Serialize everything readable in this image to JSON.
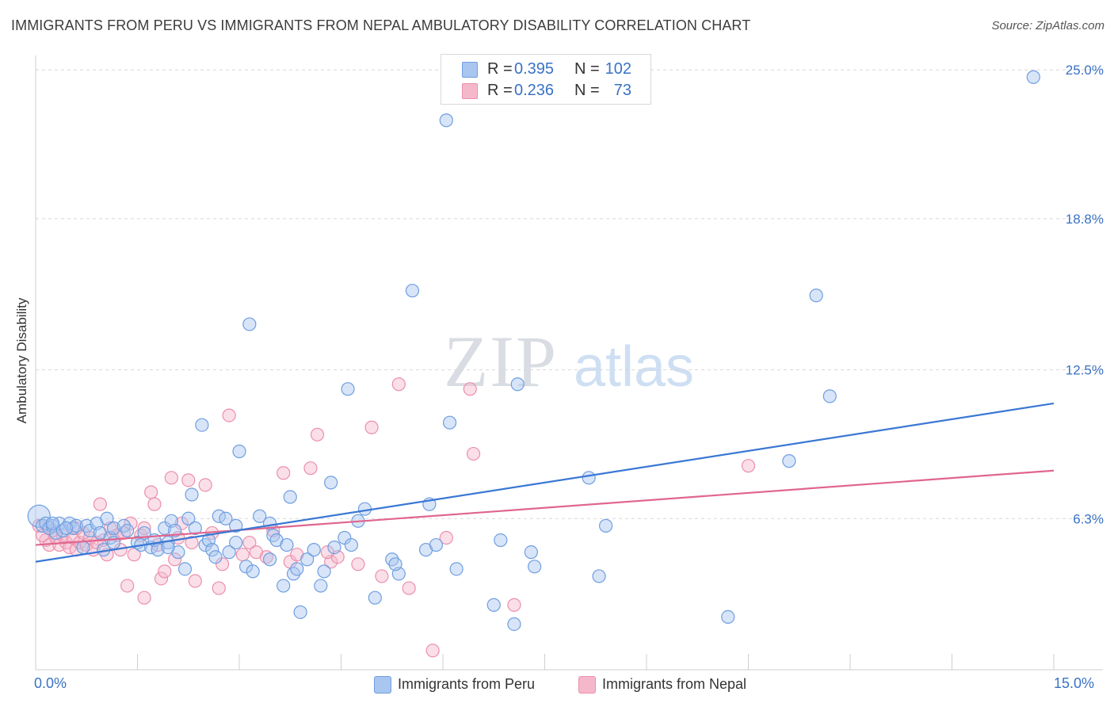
{
  "header": {
    "title": "IMMIGRANTS FROM PERU VS IMMIGRANTS FROM NEPAL AMBULATORY DISABILITY CORRELATION CHART",
    "source": "Source: ZipAtlas.com"
  },
  "watermark": {
    "zip": "ZIP",
    "atlas": "atlas"
  },
  "legend": {
    "rows": [
      {
        "r_label": "R =",
        "r_value": "0.395",
        "n_label": "N =",
        "n_value": "102",
        "color": "#a9c6f0"
      },
      {
        "r_label": "R =",
        "r_value": "0.236",
        "n_label": "N =",
        "n_value": "73",
        "color": "#f5b8cb"
      }
    ]
  },
  "bottom_legend": {
    "peru": "Immigrants from Peru",
    "nepal": "Immigrants from Nepal"
  },
  "colors": {
    "peru_fill": "#a9c6f0",
    "peru_stroke": "#6f9ee0",
    "peru_line": "#3a78d4",
    "nepal_fill": "#f5b8cb",
    "nepal_stroke": "#ec8fab",
    "nepal_line": "#e0668e",
    "axis_label": "#3a72c4",
    "grid": "#d8d8d8"
  },
  "chart_data": {
    "type": "scatter",
    "title": "IMMIGRANTS FROM PERU VS IMMIGRANTS FROM NEPAL AMBULATORY DISABILITY CORRELATION CHART",
    "xlabel": "",
    "ylabel": "Ambulatory Disability",
    "xlim": [
      0,
      15
    ],
    "ylim": [
      0,
      25.6
    ],
    "x_tick_labels": [
      "0.0%",
      "15.0%"
    ],
    "y_ticks": [
      6.3,
      12.5,
      18.8,
      25.0
    ],
    "y_tick_labels": [
      "6.3%",
      "12.5%",
      "18.8%",
      "25.0%"
    ],
    "grid": "horizontal dashed",
    "legend_position": "top-center",
    "series": [
      {
        "name": "Immigrants from Peru",
        "R": 0.395,
        "N": 102,
        "trend": {
          "x": [
            0,
            15
          ],
          "y": [
            4.5,
            11.1
          ]
        },
        "points": [
          [
            0.05,
            6.4
          ],
          [
            0.1,
            6.0
          ],
          [
            0.15,
            6.1
          ],
          [
            0.2,
            5.9
          ],
          [
            0.25,
            6.0
          ],
          [
            0.3,
            5.7
          ],
          [
            0.35,
            6.1
          ],
          [
            0.4,
            5.8
          ],
          [
            0.5,
            6.1
          ],
          [
            0.55,
            5.9
          ],
          [
            0.6,
            6.0
          ],
          [
            0.7,
            5.1
          ],
          [
            0.75,
            6.0
          ],
          [
            0.8,
            5.8
          ],
          [
            0.9,
            6.1
          ],
          [
            0.95,
            5.7
          ],
          [
            1.0,
            5.0
          ],
          [
            1.05,
            6.3
          ],
          [
            1.1,
            5.5
          ],
          [
            1.15,
            5.9
          ],
          [
            1.3,
            6.0
          ],
          [
            1.35,
            5.8
          ],
          [
            1.5,
            5.3
          ],
          [
            1.55,
            5.2
          ],
          [
            1.6,
            5.7
          ],
          [
            1.7,
            5.1
          ],
          [
            1.75,
            5.4
          ],
          [
            1.8,
            5.0
          ],
          [
            1.9,
            5.9
          ],
          [
            1.95,
            5.3
          ],
          [
            2.0,
            6.2
          ],
          [
            2.05,
            5.8
          ],
          [
            2.1,
            4.9
          ],
          [
            2.2,
            4.2
          ],
          [
            2.25,
            6.3
          ],
          [
            2.3,
            7.3
          ],
          [
            2.35,
            5.9
          ],
          [
            2.45,
            10.2
          ],
          [
            2.5,
            5.2
          ],
          [
            2.55,
            5.4
          ],
          [
            2.6,
            5.0
          ],
          [
            2.65,
            4.7
          ],
          [
            2.7,
            6.4
          ],
          [
            2.8,
            6.3
          ],
          [
            2.85,
            4.9
          ],
          [
            2.95,
            6.0
          ],
          [
            3.0,
            9.1
          ],
          [
            3.1,
            4.3
          ],
          [
            3.15,
            14.4
          ],
          [
            3.2,
            4.1
          ],
          [
            3.3,
            6.4
          ],
          [
            3.45,
            4.6
          ],
          [
            3.5,
            5.6
          ],
          [
            3.55,
            5.4
          ],
          [
            3.65,
            3.5
          ],
          [
            3.7,
            5.2
          ],
          [
            3.75,
            7.2
          ],
          [
            3.8,
            4.0
          ],
          [
            3.85,
            4.2
          ],
          [
            3.9,
            2.4
          ],
          [
            4.0,
            4.6
          ],
          [
            4.1,
            5.0
          ],
          [
            4.2,
            3.5
          ],
          [
            4.25,
            4.1
          ],
          [
            4.35,
            7.8
          ],
          [
            4.4,
            5.1
          ],
          [
            4.55,
            5.5
          ],
          [
            4.6,
            11.7
          ],
          [
            4.65,
            5.2
          ],
          [
            4.75,
            6.2
          ],
          [
            4.85,
            6.7
          ],
          [
            5.0,
            3.0
          ],
          [
            5.25,
            4.6
          ],
          [
            5.35,
            4.0
          ],
          [
            5.55,
            15.8
          ],
          [
            5.75,
            5.0
          ],
          [
            5.8,
            6.9
          ],
          [
            5.9,
            5.2
          ],
          [
            6.05,
            22.9
          ],
          [
            6.1,
            10.3
          ],
          [
            6.2,
            4.2
          ],
          [
            6.75,
            2.7
          ],
          [
            6.85,
            5.4
          ],
          [
            7.05,
            1.9
          ],
          [
            7.1,
            11.9
          ],
          [
            7.3,
            4.9
          ],
          [
            7.35,
            4.3
          ],
          [
            8.15,
            8.0
          ],
          [
            8.3,
            3.9
          ],
          [
            8.4,
            6.0
          ],
          [
            10.2,
            2.2
          ],
          [
            11.1,
            8.7
          ],
          [
            11.5,
            15.6
          ],
          [
            11.7,
            11.4
          ],
          [
            14.7,
            24.7
          ],
          [
            3.45,
            6.1
          ],
          [
            1.15,
            5.3
          ],
          [
            0.45,
            5.9
          ],
          [
            1.95,
            5.1
          ],
          [
            2.95,
            5.3
          ],
          [
            0.25,
            6.1
          ],
          [
            5.3,
            4.4
          ]
        ]
      },
      {
        "name": "Immigrants from Nepal",
        "R": 0.236,
        "N": 73,
        "trend": {
          "x": [
            0,
            15
          ],
          "y": [
            5.2,
            8.3
          ]
        },
        "points": [
          [
            0.05,
            6.0
          ],
          [
            0.15,
            5.4
          ],
          [
            0.2,
            5.2
          ],
          [
            0.3,
            5.5
          ],
          [
            0.35,
            5.2
          ],
          [
            0.4,
            5.6
          ],
          [
            0.45,
            5.3
          ],
          [
            0.5,
            5.1
          ],
          [
            0.55,
            5.5
          ],
          [
            0.6,
            5.0
          ],
          [
            0.65,
            5.3
          ],
          [
            0.7,
            5.7
          ],
          [
            0.75,
            5.2
          ],
          [
            0.8,
            5.5
          ],
          [
            0.85,
            5.0
          ],
          [
            0.95,
            6.9
          ],
          [
            1.0,
            5.4
          ],
          [
            1.05,
            4.8
          ],
          [
            1.1,
            5.9
          ],
          [
            1.2,
            5.6
          ],
          [
            1.25,
            5.0
          ],
          [
            1.35,
            3.5
          ],
          [
            1.4,
            6.1
          ],
          [
            1.45,
            4.8
          ],
          [
            1.55,
            5.6
          ],
          [
            1.6,
            3.0
          ],
          [
            1.7,
            7.4
          ],
          [
            1.75,
            6.9
          ],
          [
            1.8,
            5.2
          ],
          [
            1.85,
            3.8
          ],
          [
            1.9,
            4.1
          ],
          [
            2.0,
            8.0
          ],
          [
            2.1,
            5.5
          ],
          [
            2.15,
            6.1
          ],
          [
            2.25,
            7.9
          ],
          [
            2.3,
            5.3
          ],
          [
            2.35,
            3.7
          ],
          [
            2.5,
            7.7
          ],
          [
            2.6,
            5.7
          ],
          [
            2.7,
            3.4
          ],
          [
            2.75,
            4.4
          ],
          [
            2.85,
            10.6
          ],
          [
            3.05,
            4.8
          ],
          [
            3.15,
            5.3
          ],
          [
            3.4,
            4.7
          ],
          [
            3.5,
            5.8
          ],
          [
            3.65,
            8.2
          ],
          [
            3.75,
            4.5
          ],
          [
            3.85,
            4.8
          ],
          [
            4.05,
            8.4
          ],
          [
            4.15,
            9.8
          ],
          [
            4.35,
            4.5
          ],
          [
            4.45,
            4.7
          ],
          [
            4.75,
            4.4
          ],
          [
            4.95,
            10.1
          ],
          [
            5.1,
            3.9
          ],
          [
            5.35,
            11.9
          ],
          [
            5.5,
            3.4
          ],
          [
            5.85,
            0.8
          ],
          [
            6.05,
            5.5
          ],
          [
            6.4,
            11.7
          ],
          [
            6.45,
            9.0
          ],
          [
            7.05,
            2.7
          ],
          [
            10.5,
            8.5
          ],
          [
            0.25,
            5.8
          ],
          [
            0.9,
            5.3
          ],
          [
            1.6,
            5.9
          ],
          [
            2.05,
            4.6
          ],
          [
            3.25,
            4.9
          ],
          [
            1.3,
            5.7
          ],
          [
            0.6,
            5.9
          ],
          [
            0.1,
            5.6
          ],
          [
            4.3,
            4.9
          ]
        ]
      }
    ]
  }
}
